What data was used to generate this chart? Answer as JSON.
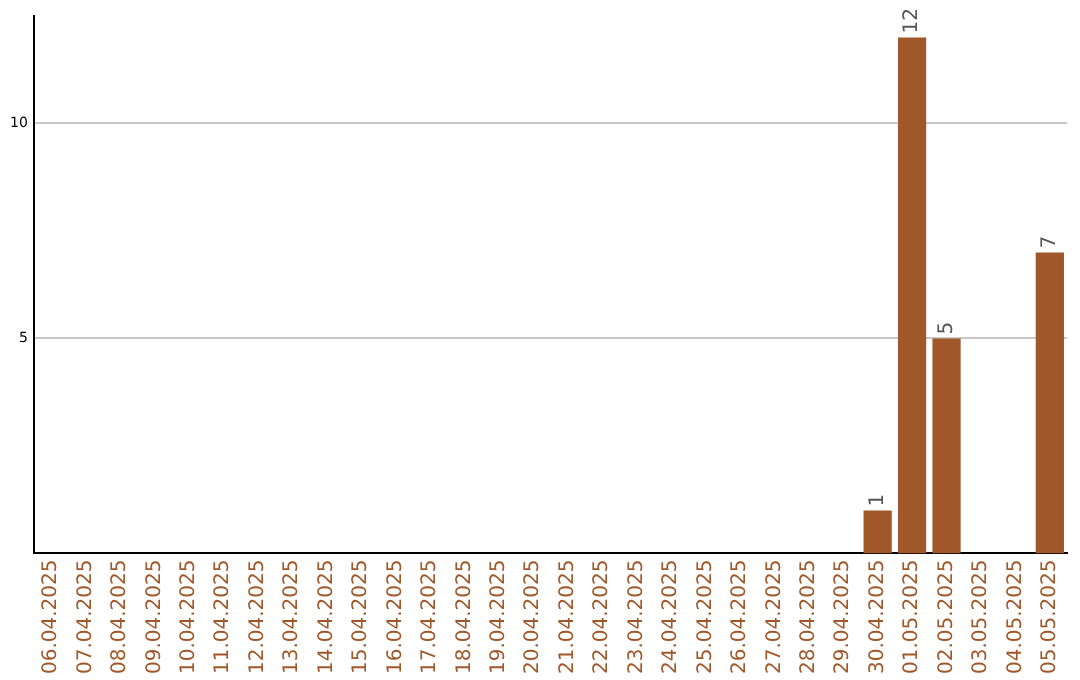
{
  "chart_data": {
    "type": "bar",
    "categories": [
      "06.04.2025",
      "07.04.2025",
      "08.04.2025",
      "09.04.2025",
      "10.04.2025",
      "11.04.2025",
      "12.04.2025",
      "13.04.2025",
      "14.04.2025",
      "15.04.2025",
      "16.04.2025",
      "17.04.2025",
      "18.04.2025",
      "19.04.2025",
      "20.04.2025",
      "21.04.2025",
      "22.04.2025",
      "23.04.2025",
      "24.04.2025",
      "25.04.2025",
      "26.04.2025",
      "27.04.2025",
      "28.04.2025",
      "29.04.2025",
      "30.04.2025",
      "01.05.2025",
      "02.05.2025",
      "03.05.2025",
      "04.05.2025",
      "05.05.2025"
    ],
    "values": [
      0,
      0,
      0,
      0,
      0,
      0,
      0,
      0,
      0,
      0,
      0,
      0,
      0,
      0,
      0,
      0,
      0,
      0,
      0,
      0,
      0,
      0,
      0,
      0,
      1,
      12,
      5,
      0,
      0,
      7
    ],
    "value_labels": [
      null,
      null,
      null,
      null,
      null,
      null,
      null,
      null,
      null,
      null,
      null,
      null,
      null,
      null,
      null,
      null,
      null,
      null,
      null,
      null,
      null,
      null,
      null,
      null,
      "1",
      "12",
      "5",
      null,
      null,
      "7"
    ],
    "color": "#a0582a",
    "ylim": [
      0,
      12.5
    ],
    "yticks": [
      5,
      10
    ],
    "grid": "y",
    "legend": false
  }
}
